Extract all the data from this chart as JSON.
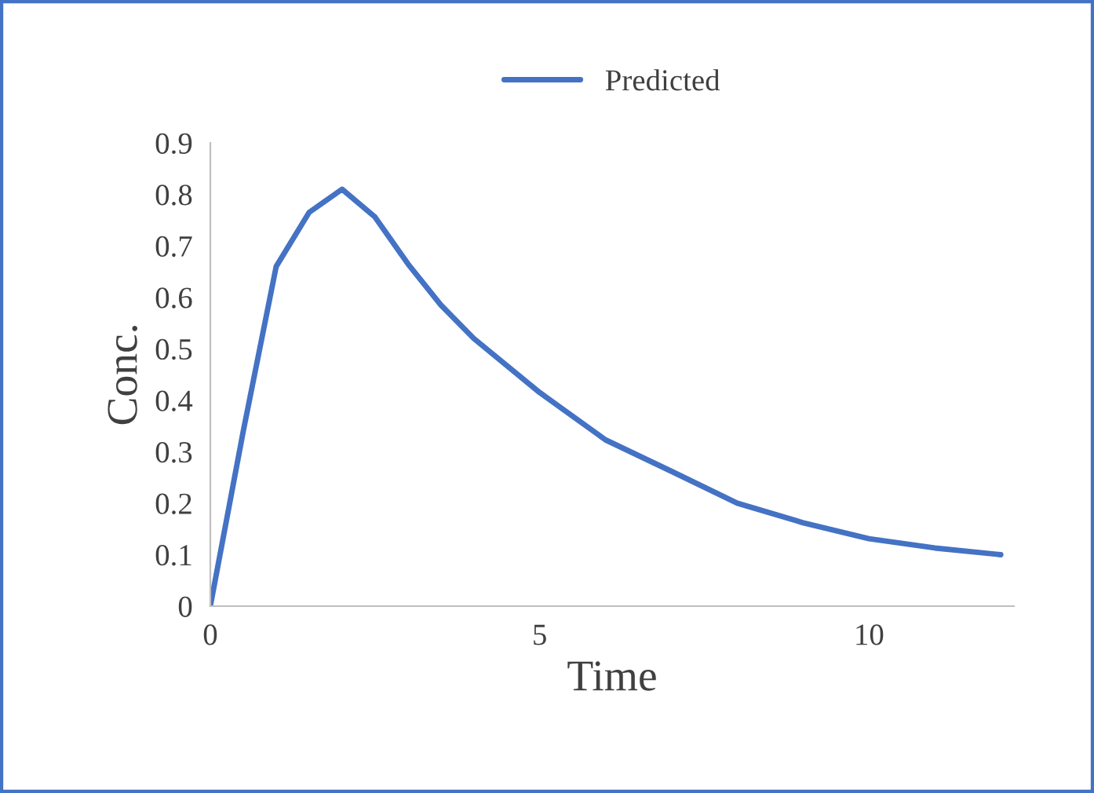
{
  "chart_data": {
    "type": "line",
    "xlabel": "Time",
    "ylabel": "Conc.",
    "x": [
      0,
      0.5,
      1,
      1.5,
      2,
      2.5,
      3,
      3.5,
      4,
      5,
      6,
      7,
      8,
      9,
      10,
      11,
      12
    ],
    "series": [
      {
        "name": "Predicted",
        "color": "#4472c4",
        "values": [
          0,
          0.34,
          0.66,
          0.765,
          0.81,
          0.756,
          0.665,
          0.585,
          0.52,
          0.415,
          0.323,
          0.262,
          0.2,
          0.162,
          0.131,
          0.113,
          0.1
        ]
      }
    ],
    "xlim": [
      0,
      12.2
    ],
    "xticks": [
      0,
      5,
      10
    ],
    "ylim": [
      0,
      0.9
    ],
    "yticks": [
      0,
      0.1,
      0.2,
      0.3,
      0.4,
      0.5,
      0.6,
      0.7,
      0.8,
      0.9
    ],
    "grid": false,
    "legend": "top",
    "marker": "none",
    "line_style": "solid"
  }
}
